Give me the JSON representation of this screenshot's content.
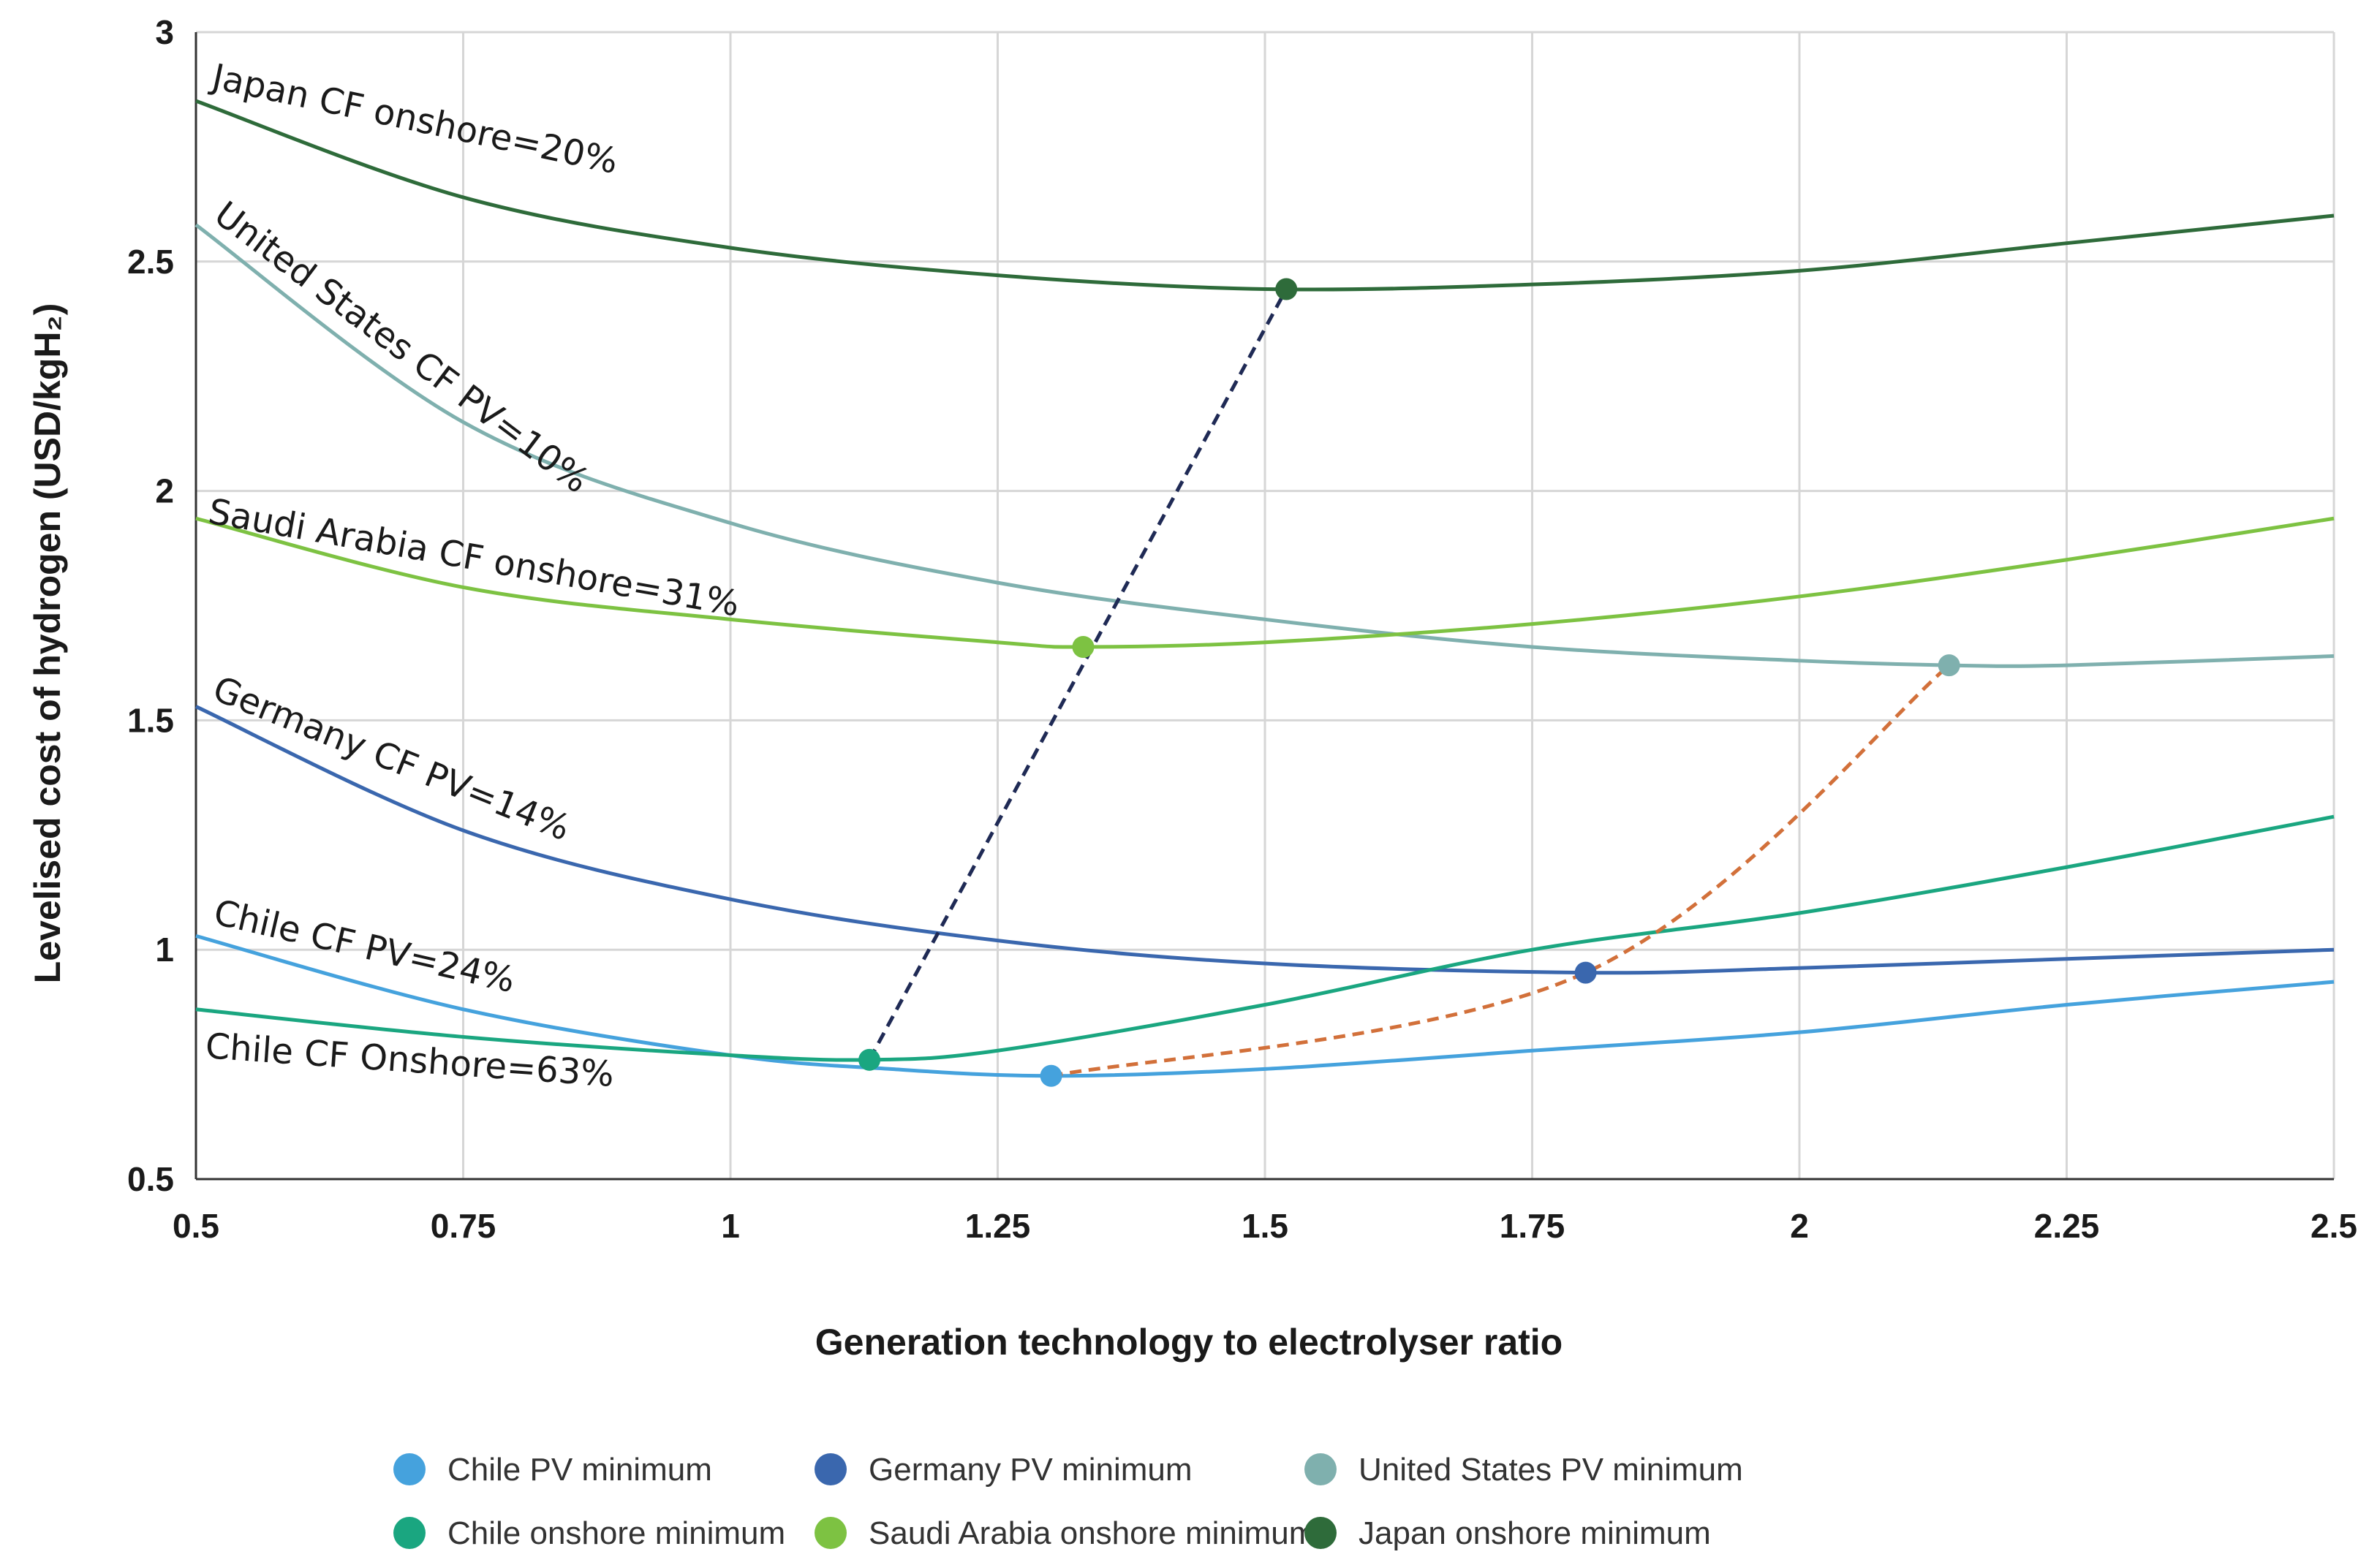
{
  "chart_data": {
    "type": "line",
    "title": "",
    "xlabel": "Generation technology to electrolyser ratio",
    "ylabel": "Levelised cost of hydrogen (USD/kgH₂)",
    "xlim": [
      0.5,
      2.5
    ],
    "ylim": [
      0.5,
      3
    ],
    "x_ticks": [
      "0.5",
      "0.75",
      "1",
      "1.25",
      "1.5",
      "1.75",
      "2",
      "2.25",
      "2.5"
    ],
    "y_ticks": [
      "0.5",
      "1",
      "1.5",
      "2",
      "2.5",
      "3"
    ],
    "grid": true,
    "series": [
      {
        "name": "Japan CF onshore=20%",
        "label": "Japan CF onshore=20%",
        "color": "#2e6b3a",
        "x": [
          0.5,
          0.75,
          1.0,
          1.25,
          1.5,
          1.75,
          2.0,
          2.25,
          2.5
        ],
        "y": [
          2.85,
          2.64,
          2.53,
          2.47,
          2.44,
          2.45,
          2.48,
          2.54,
          2.6
        ]
      },
      {
        "name": "United States CF PV=10%",
        "label": "United States CF PV=10%",
        "color": "#7fb0ae",
        "x": [
          0.5,
          0.75,
          1.0,
          1.25,
          1.5,
          1.75,
          2.0,
          2.14,
          2.25,
          2.5
        ],
        "y": [
          2.58,
          2.15,
          1.93,
          1.8,
          1.72,
          1.66,
          1.63,
          1.62,
          1.62,
          1.64
        ]
      },
      {
        "name": "Saudi Arabia CF onshore=31%",
        "label": "Saudi Arabia CF onshore=31%",
        "color": "#7dc242",
        "x": [
          0.5,
          0.75,
          1.0,
          1.25,
          1.33,
          1.5,
          1.75,
          2.0,
          2.25,
          2.5
        ],
        "y": [
          1.94,
          1.79,
          1.72,
          1.67,
          1.66,
          1.67,
          1.71,
          1.77,
          1.85,
          1.94
        ]
      },
      {
        "name": "Germany CF PV=14%",
        "label": "Germany CF PV=14%",
        "color": "#3a67ae",
        "x": [
          0.5,
          0.75,
          1.0,
          1.25,
          1.5,
          1.8,
          2.0,
          2.25,
          2.5
        ],
        "y": [
          1.53,
          1.26,
          1.11,
          1.02,
          0.97,
          0.95,
          0.96,
          0.98,
          1.0
        ]
      },
      {
        "name": "Chile CF PV=24%",
        "label": "Chile CF PV=24%",
        "color": "#45a2dd",
        "x": [
          0.5,
          0.75,
          1.0,
          1.15,
          1.3,
          1.5,
          1.75,
          2.0,
          2.25,
          2.5
        ],
        "y": [
          1.03,
          0.87,
          0.77,
          0.74,
          0.725,
          0.74,
          0.78,
          0.82,
          0.88,
          0.93
        ]
      },
      {
        "name": "Chile CF Onshore=63%",
        "label": "Chile CF Onshore=63%",
        "color": "#1aa680",
        "x": [
          0.5,
          0.75,
          1.0,
          1.13,
          1.25,
          1.5,
          1.75,
          2.0,
          2.25,
          2.5
        ],
        "y": [
          0.87,
          0.81,
          0.77,
          0.76,
          0.78,
          0.88,
          1.0,
          1.08,
          1.18,
          1.29
        ]
      }
    ],
    "minima": [
      {
        "name": "Chile PV minimum",
        "x": 1.3,
        "y": 0.725,
        "color": "#45a2dd"
      },
      {
        "name": "Germany PV minimum",
        "x": 1.8,
        "y": 0.95,
        "color": "#3a67ae"
      },
      {
        "name": "United States PV minimum",
        "x": 2.14,
        "y": 1.62,
        "color": "#7fb0ae"
      },
      {
        "name": "Chile onshore minimum",
        "x": 1.13,
        "y": 0.76,
        "color": "#1aa680"
      },
      {
        "name": "Saudi Arabia onshore minimum",
        "x": 1.33,
        "y": 1.66,
        "color": "#7dc242"
      },
      {
        "name": "Japan onshore minimum",
        "x": 1.52,
        "y": 2.44,
        "color": "#2e6b3a"
      }
    ],
    "connectors": [
      {
        "name": "onshore-minima-line",
        "color": "#1f2a55",
        "x": [
          1.13,
          1.52
        ],
        "y": [
          0.76,
          2.44
        ]
      },
      {
        "name": "pv-minima-line",
        "color": "#d2703a",
        "x": [
          1.3,
          1.8,
          2.14
        ],
        "y": [
          0.725,
          0.95,
          1.62
        ]
      }
    ],
    "legend": [
      {
        "label": "Chile PV minimum",
        "color": "#45a2dd"
      },
      {
        "label": "Germany PV minimum",
        "color": "#3a67ae"
      },
      {
        "label": "United States PV minimum",
        "color": "#7fb0ae"
      },
      {
        "label": "Chile onshore minimum",
        "color": "#1aa680"
      },
      {
        "label": "Saudi Arabia onshore minimum",
        "color": "#7dc242"
      },
      {
        "label": "Japan onshore minimum",
        "color": "#2e6b3a"
      }
    ],
    "legend_position": "bottom"
  }
}
